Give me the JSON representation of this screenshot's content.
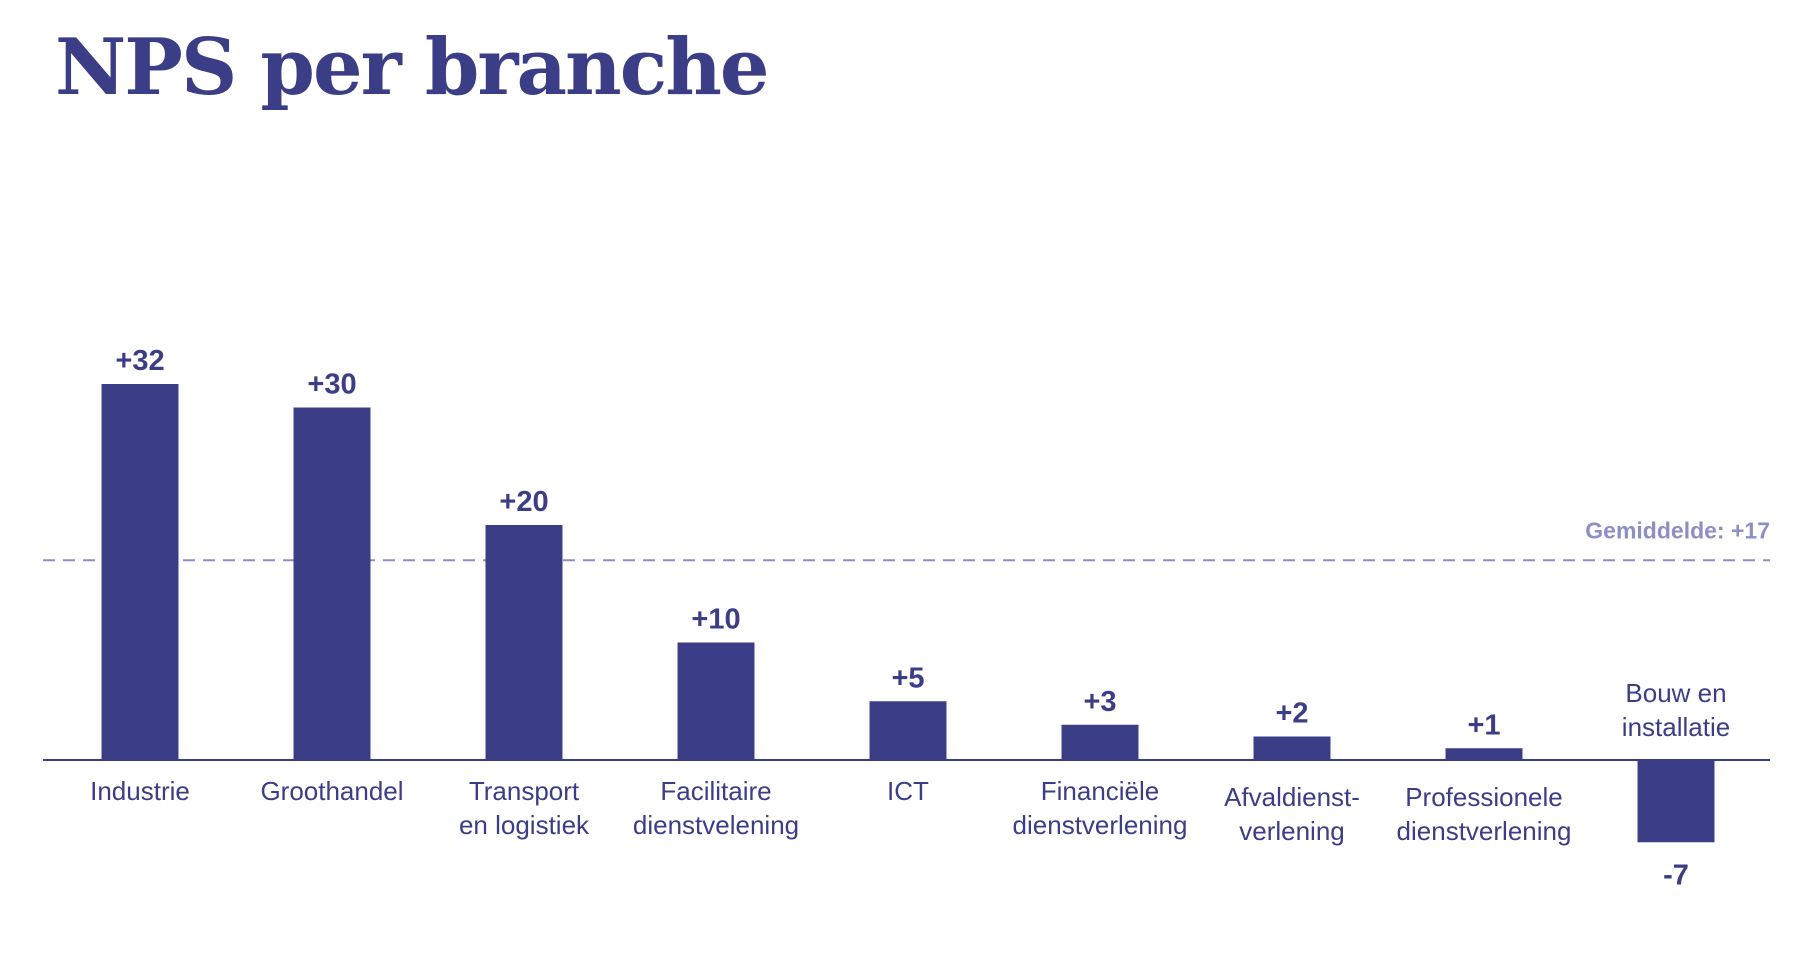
{
  "colors": {
    "bar": "#3b3d86",
    "text": "#3b3d86",
    "average": "#8c8fc4",
    "axis": "#3b3d86"
  },
  "chart_data": {
    "type": "bar",
    "title": "NPS per branche",
    "categories": [
      [
        "Industrie"
      ],
      [
        "Groothandel"
      ],
      [
        "Transport",
        "en logistiek"
      ],
      [
        "Facilitaire",
        "dienstvelening"
      ],
      [
        "ICT"
      ],
      [
        "Financiële",
        "dienstverlening"
      ],
      [
        "Afvaldienst-",
        "verlening"
      ],
      [
        "Professionele",
        "dienstverlening"
      ],
      [
        "Bouw en",
        "installatie"
      ]
    ],
    "values": [
      32,
      30,
      20,
      10,
      5,
      3,
      2,
      1,
      -7
    ],
    "value_labels": [
      "+32",
      "+30",
      "+20",
      "+10",
      "+5",
      "+3",
      "+2",
      "+1",
      "-7"
    ],
    "average": {
      "value": 17,
      "label": "Gemiddelde: +17"
    },
    "grid": false,
    "legend": "none"
  }
}
